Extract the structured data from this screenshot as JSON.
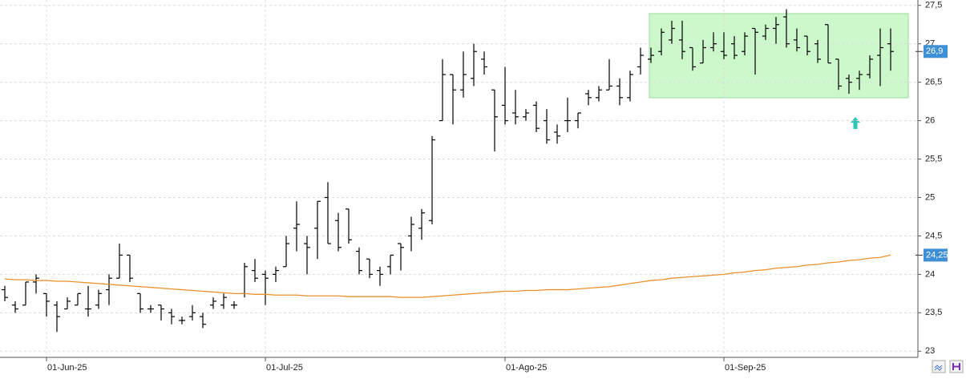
{
  "chart_data": {
    "type": "ohlc",
    "ylim": [
      22.93,
      27.57
    ],
    "yticks": [
      23,
      {
        "value": 23.5,
        "label": "23,5"
      },
      24,
      {
        "value": 24.5,
        "label": "24,5"
      },
      25,
      {
        "value": 25.5,
        "label": "25,5"
      },
      26,
      {
        "value": 26.5,
        "label": "26,5"
      },
      27,
      {
        "value": 27.5,
        "label": "27,5"
      }
    ],
    "xticks": [
      {
        "value": 4,
        "label": "01-Jun-25"
      },
      {
        "value": 25,
        "label": "01-Jul-25"
      },
      {
        "value": 48,
        "label": "01-Ago-25"
      },
      {
        "value": 69,
        "label": "01-Sep-25"
      }
    ],
    "grid": true,
    "color": "#000000",
    "ohlc": {
      "open": [
        23.8,
        23.6,
        23.6,
        23.9,
        23.75,
        23.6,
        23.55,
        23.6,
        23.55,
        23.6,
        23.8,
        23.95,
        24.25,
        23.75,
        23.55,
        23.6,
        23.5,
        23.4,
        23.45,
        23.45,
        23.6,
        23.6,
        23.6,
        23.75,
        24.05,
        24.0,
        24.0,
        24.1,
        24.6,
        24.4,
        24.6,
        25.0,
        24.7,
        24.85,
        24.3,
        24.2,
        24.05,
        24.1,
        24.4,
        24.5,
        24.6,
        24.7,
        26.0,
        26.6,
        26.4,
        26.55,
        26.8,
        26.4,
        26.2,
        26.1,
        26.05,
        26.2,
        26.0,
        25.85,
        26.0,
        26.0,
        26.35,
        26.3,
        26.4,
        26.45,
        26.3,
        26.7,
        26.8,
        26.9,
        27.05,
        27.05,
        26.95,
        26.75,
        26.95,
        26.9,
        27.0,
        26.9,
        27.2,
        27.1,
        27.2,
        27.35,
        27.05,
        27.1,
        27.0,
        27.25,
        26.8,
        26.55,
        26.55,
        26.6,
        26.85,
        27.0
      ],
      "high": [
        23.85,
        23.65,
        23.9,
        24.0,
        23.75,
        23.65,
        23.7,
        23.75,
        23.85,
        23.8,
        24.0,
        24.4,
        24.25,
        23.75,
        23.6,
        23.6,
        23.55,
        23.45,
        23.6,
        23.5,
        23.7,
        23.75,
        23.65,
        24.15,
        24.2,
        24.05,
        24.1,
        24.5,
        24.95,
        24.5,
        24.95,
        25.2,
        24.8,
        24.85,
        24.35,
        24.2,
        24.1,
        24.25,
        24.4,
        24.75,
        24.85,
        25.8,
        26.8,
        26.6,
        26.9,
        27.0,
        26.9,
        26.4,
        26.7,
        26.4,
        26.15,
        26.25,
        26.15,
        25.95,
        26.3,
        26.1,
        26.4,
        26.45,
        26.8,
        26.55,
        26.65,
        26.95,
        26.95,
        27.2,
        27.3,
        27.3,
        26.95,
        27.05,
        27.15,
        27.15,
        27.1,
        27.15,
        27.2,
        27.25,
        27.35,
        27.45,
        27.2,
        27.1,
        27.05,
        27.25,
        26.8,
        26.6,
        26.65,
        26.85,
        27.2,
        27.2
      ],
      "low": [
        23.65,
        23.5,
        23.6,
        23.75,
        23.45,
        23.25,
        23.55,
        23.6,
        23.45,
        23.55,
        23.6,
        23.95,
        23.9,
        23.5,
        23.5,
        23.4,
        23.35,
        23.35,
        23.4,
        23.3,
        23.55,
        23.55,
        23.55,
        23.7,
        23.9,
        23.6,
        23.9,
        24.1,
        24.3,
        24.0,
        24.2,
        24.4,
        24.3,
        24.4,
        24.0,
        23.95,
        23.85,
        24.0,
        24.05,
        24.3,
        24.45,
        24.65,
        26.0,
        25.95,
        26.3,
        26.45,
        26.6,
        25.6,
        25.95,
        25.95,
        26.0,
        25.85,
        25.7,
        25.7,
        25.85,
        25.9,
        26.2,
        26.25,
        26.4,
        26.2,
        26.25,
        26.6,
        26.75,
        26.85,
        27.0,
        26.8,
        26.65,
        26.75,
        26.9,
        26.8,
        26.8,
        26.85,
        26.6,
        27.05,
        27.0,
        26.95,
        26.9,
        26.85,
        26.75,
        26.75,
        26.4,
        26.35,
        26.4,
        26.55,
        26.45,
        26.65
      ],
      "close": [
        23.7,
        23.55,
        23.9,
        23.95,
        23.65,
        23.45,
        23.65,
        23.75,
        23.55,
        23.75,
        23.95,
        24.25,
        23.95,
        23.55,
        23.55,
        23.55,
        23.45,
        23.4,
        23.5,
        23.35,
        23.65,
        23.7,
        23.6,
        24.1,
        23.95,
        23.95,
        24.05,
        24.4,
        24.65,
        24.35,
        24.95,
        24.4,
        24.35,
        24.45,
        24.05,
        24.0,
        24.0,
        24.25,
        24.35,
        24.65,
        24.8,
        25.75,
        26.6,
        26.4,
        26.6,
        26.9,
        26.7,
        26.05,
        26.0,
        26.05,
        26.1,
        25.9,
        25.75,
        25.8,
        26.0,
        26.1,
        26.3,
        26.4,
        26.45,
        26.3,
        26.6,
        26.85,
        26.85,
        27.15,
        27.2,
        26.9,
        26.7,
        26.95,
        27.0,
        26.85,
        26.85,
        27.1,
        27.15,
        27.2,
        27.25,
        27.0,
        26.95,
        26.9,
        26.8,
        26.75,
        26.45,
        26.5,
        26.6,
        26.8,
        26.95,
        26.9
      ]
    },
    "moving_average": {
      "color": "#e8922c",
      "values": [
        23.94,
        23.93,
        23.93,
        23.92,
        23.92,
        23.91,
        23.91,
        23.9,
        23.89,
        23.88,
        23.87,
        23.86,
        23.85,
        23.84,
        23.83,
        23.82,
        23.81,
        23.8,
        23.79,
        23.78,
        23.77,
        23.76,
        23.75,
        23.75,
        23.74,
        23.74,
        23.73,
        23.73,
        23.73,
        23.72,
        23.72,
        23.72,
        23.72,
        23.71,
        23.71,
        23.71,
        23.71,
        23.71,
        23.7,
        23.7,
        23.7,
        23.71,
        23.72,
        23.73,
        23.74,
        23.75,
        23.76,
        23.77,
        23.78,
        23.78,
        23.79,
        23.79,
        23.8,
        23.8,
        23.8,
        23.81,
        23.82,
        23.83,
        23.84,
        23.86,
        23.88,
        23.9,
        23.92,
        23.93,
        23.95,
        23.96,
        23.97,
        23.98,
        23.99,
        24.0,
        24.02,
        24.03,
        24.05,
        24.06,
        24.08,
        24.09,
        24.1,
        24.12,
        24.13,
        24.15,
        24.16,
        24.18,
        24.19,
        24.21,
        24.22,
        24.25
      ]
    },
    "last_price": {
      "value": 26.9,
      "label": "26,9",
      "color": "#3d8fd6"
    },
    "ma_price": {
      "value": 24.25,
      "label": "24,25",
      "color": "#3d8fd6"
    }
  }
}
